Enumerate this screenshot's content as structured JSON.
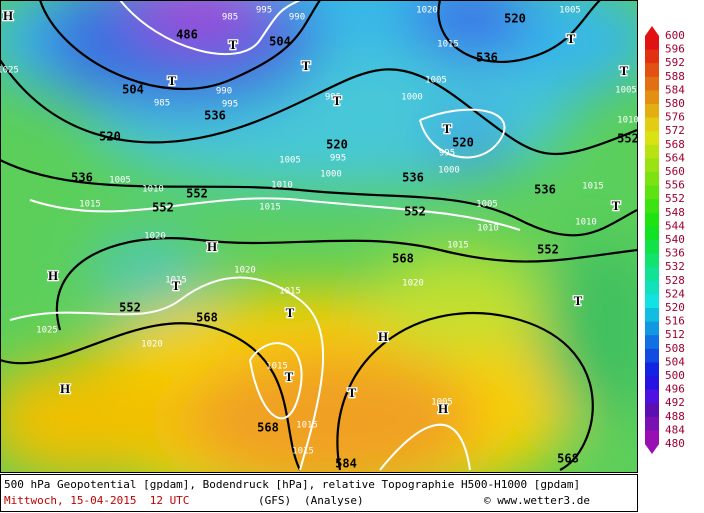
{
  "map": {
    "height_labels": [
      "486",
      "504",
      "504",
      "520",
      "536",
      "520",
      "536",
      "520",
      "520",
      "536",
      "552",
      "536",
      "536",
      "552",
      "552",
      "552",
      "552",
      "568",
      "552",
      "568",
      "568",
      "584",
      "568"
    ],
    "pressure_labels": [
      "985",
      "995",
      "990",
      "990",
      "995",
      "985",
      "995",
      "1020",
      "1015",
      "1005",
      "1000",
      "995",
      "1005",
      "995",
      "1000",
      "1000",
      "1010",
      "1015",
      "1010",
      "1005",
      "1015",
      "1020",
      "1005",
      "1010",
      "1015",
      "1020",
      "1015",
      "1020",
      "1025",
      "1020",
      "1015",
      "1015",
      "1015",
      "1005",
      "1015",
      "1005",
      "1025",
      "1010",
      "1015",
      "1010",
      "1005"
    ],
    "centers": [
      "H",
      "H",
      "H",
      "H",
      "H",
      "H",
      "T",
      "T",
      "T",
      "T",
      "T",
      "T",
      "T",
      "T",
      "T",
      "T",
      "T",
      "T",
      "T"
    ]
  },
  "colorbar": {
    "labels": [
      "600",
      "596",
      "592",
      "588",
      "584",
      "580",
      "576",
      "572",
      "568",
      "564",
      "560",
      "556",
      "552",
      "548",
      "544",
      "540",
      "536",
      "532",
      "528",
      "524",
      "520",
      "516",
      "512",
      "508",
      "504",
      "500",
      "496",
      "492",
      "488",
      "484",
      "480"
    ]
  },
  "footer": {
    "line1": "500 hPa Geopotential [gpdam], Bodendruck [hPa], relative Topographie H500-H1000 [gpdam]",
    "date": "Mittwoch, 15-04-2015  12 UTC",
    "model": "(GFS)",
    "run": "(Analyse)",
    "credit": "© www.wetter3.de"
  }
}
